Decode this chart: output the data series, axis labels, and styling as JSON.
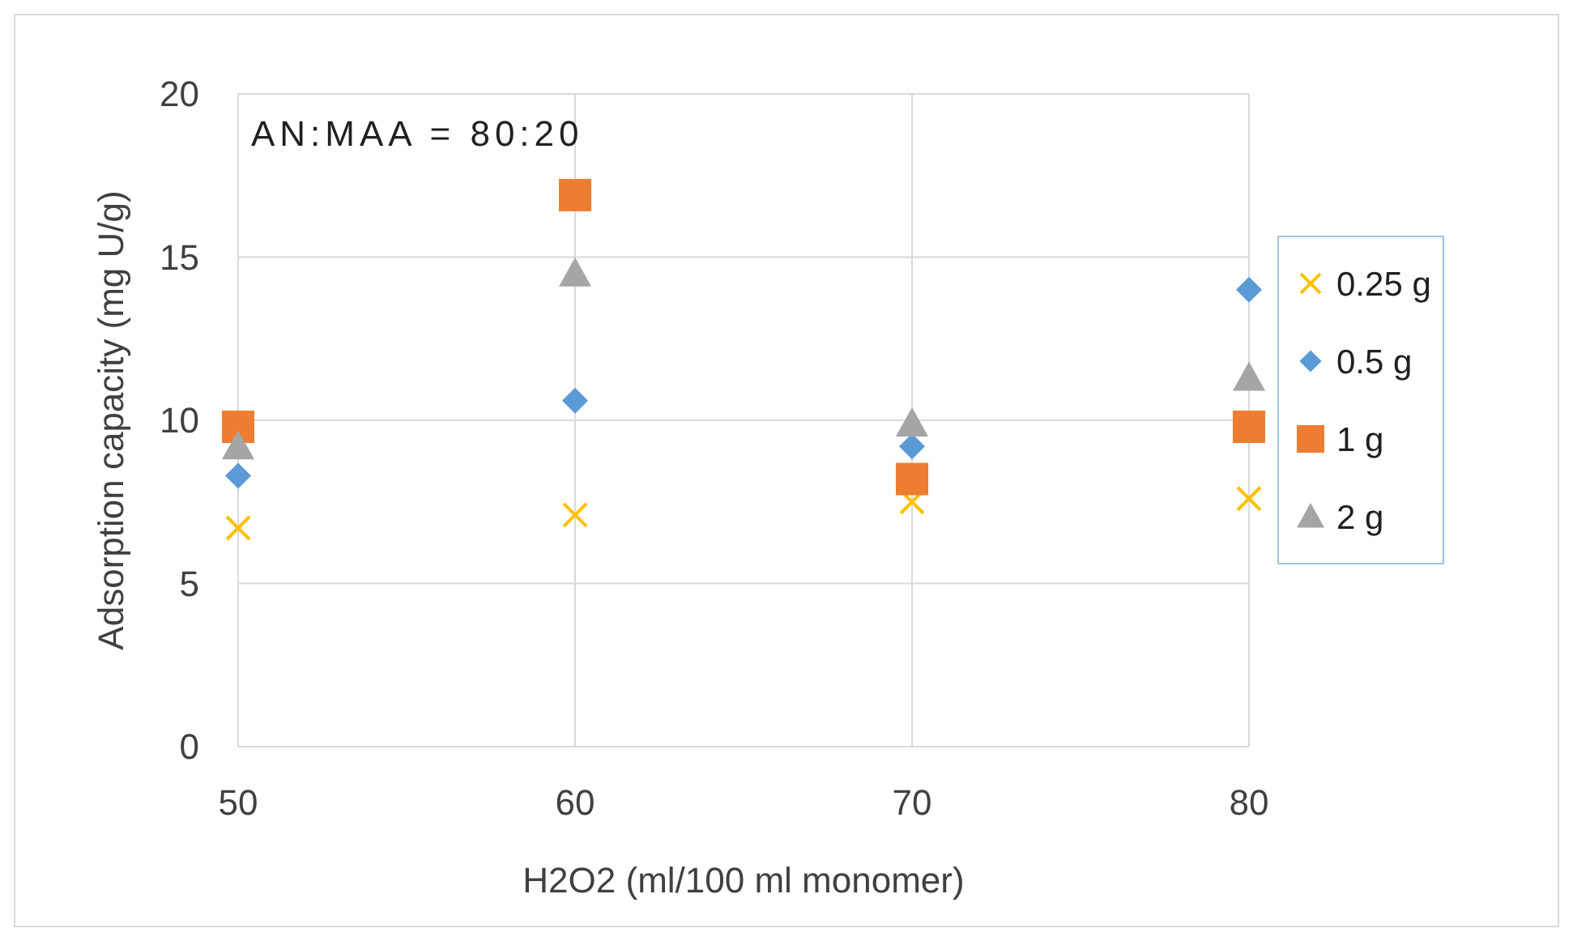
{
  "chart_data": {
    "type": "scatter",
    "xlabel": "H2O2 (ml/100 ml monomer)",
    "ylabel": "Adsorption capacity (mg U/g)",
    "annotations": [
      "AN:MAA = 80:20"
    ],
    "x": [
      50,
      60,
      70,
      80
    ],
    "xlim": [
      50,
      80
    ],
    "xticks": [
      50,
      60,
      70,
      80
    ],
    "ylim": [
      0,
      20
    ],
    "yticks": [
      0,
      5,
      10,
      15,
      20
    ],
    "grid": true,
    "legend": "right",
    "series": [
      {
        "name": "0.25 g",
        "color": "#ffc000",
        "marker": "cross",
        "values": [
          6.7,
          7.1,
          7.5,
          7.6
        ]
      },
      {
        "name": "0.5 g",
        "color": "#5b9bd5",
        "marker": "diamond",
        "values": [
          8.3,
          10.6,
          9.2,
          14.0
        ]
      },
      {
        "name": "1 g",
        "color": "#ed7d31",
        "marker": "square",
        "values": [
          9.8,
          16.9,
          8.2,
          9.8
        ]
      },
      {
        "name": "2 g",
        "color": "#a5a5a5",
        "marker": "triangle",
        "values": [
          9.2,
          14.5,
          9.9,
          11.3
        ]
      }
    ]
  }
}
